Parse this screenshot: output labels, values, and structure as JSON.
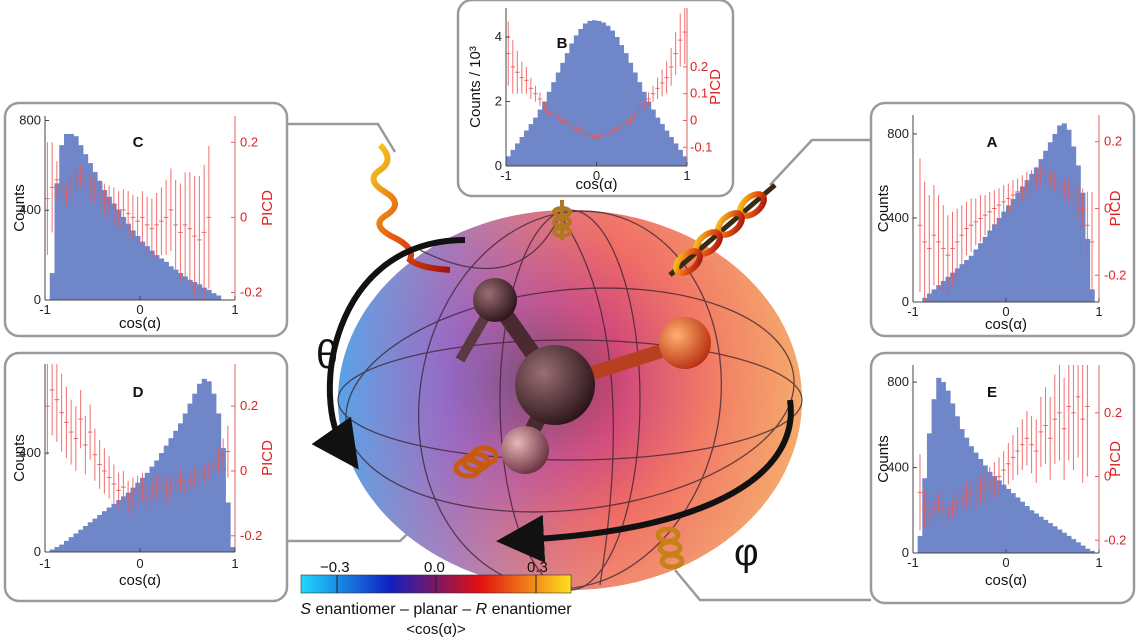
{
  "figure": {
    "theta_symbol": "θ",
    "phi_symbol": "φ",
    "colorbar": {
      "ticks": [
        "−0.3",
        "0.0",
        "0.3"
      ],
      "caption_parts": [
        "S",
        " enantiomer – planar – ",
        "R",
        " enantiomer"
      ],
      "quantity": "<cos(α)>",
      "colors": [
        "#20d8ff",
        "#1020c0",
        "#e01010",
        "#ffe020"
      ]
    }
  },
  "chart_data": [
    {
      "id": "B",
      "type": "bar",
      "label": "B",
      "xlabel": "cos(α)",
      "ylabel": "Counts / 10³",
      "ylabel_right": "PICD",
      "xlim": [
        -1,
        1
      ],
      "ylim": [
        0,
        4.9
      ],
      "y2lim": [
        -0.17,
        0.42
      ],
      "xticks": [
        "-1",
        "0",
        "1"
      ],
      "yticks": [
        "0",
        "2",
        "4"
      ],
      "y2ticks": [
        "0.2",
        "0.1",
        "0",
        "-0.1"
      ],
      "ytick_values": [
        0,
        2,
        4
      ],
      "y2tick_values": [
        0.2,
        0.1,
        0,
        -0.1
      ],
      "hist_color": "#6f86c8",
      "err_color": "#ee5555",
      "bins": 40,
      "values": [
        0.3,
        0.5,
        0.7,
        0.9,
        1.1,
        1.3,
        1.5,
        1.75,
        2.0,
        2.3,
        2.6,
        2.9,
        3.2,
        3.5,
        3.8,
        4.05,
        4.25,
        4.42,
        4.5,
        4.52,
        4.5,
        4.45,
        4.35,
        4.2,
        4.0,
        3.75,
        3.5,
        3.2,
        2.9,
        2.6,
        2.3,
        2.0,
        1.75,
        1.5,
        1.3,
        1.1,
        0.9,
        0.7,
        0.5,
        0.3
      ],
      "picd": [
        0.25,
        0.2,
        0.18,
        0.16,
        0.15,
        0.12,
        0.1,
        0.08,
        0.05,
        0.03,
        0.02,
        0.01,
        0.0,
        -0.01,
        -0.02,
        -0.03,
        -0.04,
        -0.05,
        -0.05,
        -0.06,
        -0.06,
        -0.05,
        -0.05,
        -0.04,
        -0.03,
        -0.02,
        -0.01,
        0.0,
        0.02,
        0.04,
        0.06,
        0.08,
        0.1,
        0.12,
        0.14,
        0.16,
        0.2,
        0.25,
        0.3,
        0.33
      ],
      "picd_err": [
        0.12,
        0.1,
        0.08,
        0.06,
        0.05,
        0.04,
        0.03,
        0.025,
        0.02,
        0.02,
        0.015,
        0.015,
        0.012,
        0.012,
        0.01,
        0.01,
        0.01,
        0.01,
        0.01,
        0.01,
        0.01,
        0.01,
        0.01,
        0.01,
        0.01,
        0.012,
        0.012,
        0.015,
        0.015,
        0.02,
        0.02,
        0.025,
        0.03,
        0.04,
        0.05,
        0.06,
        0.07,
        0.08,
        0.1,
        0.12
      ]
    },
    {
      "id": "C",
      "type": "bar",
      "label": "C",
      "xlabel": "cos(α)",
      "ylabel": "Counts",
      "ylabel_right": "PICD",
      "xlim": [
        -1,
        1
      ],
      "ylim": [
        0,
        820
      ],
      "y2lim": [
        -0.22,
        0.27
      ],
      "xticks": [
        "-1",
        "0",
        "1"
      ],
      "yticks": [
        "0",
        "400",
        "800"
      ],
      "y2ticks": [
        "0.2",
        "0",
        "-0.2"
      ],
      "ytick_values": [
        0,
        400,
        800
      ],
      "y2tick_values": [
        0.2,
        0,
        -0.2
      ],
      "hist_color": "#6f86c8",
      "err_color": "#ee5555",
      "bins": 40,
      "values": [
        0,
        120,
        520,
        690,
        740,
        740,
        730,
        690,
        650,
        610,
        570,
        530,
        490,
        460,
        430,
        400,
        370,
        340,
        310,
        285,
        260,
        240,
        220,
        200,
        185,
        170,
        150,
        135,
        120,
        105,
        90,
        80,
        70,
        55,
        45,
        30,
        20,
        0,
        0,
        0
      ],
      "picd": [
        0.05,
        0.08,
        0.1,
        0.07,
        0.06,
        0.09,
        0.1,
        0.11,
        0.1,
        0.08,
        0.07,
        0.06,
        0.05,
        0.04,
        0.03,
        0.02,
        0.02,
        0.01,
        0.0,
        -0.01,
        0.0,
        -0.02,
        -0.03,
        -0.02,
        -0.01,
        0.0,
        0.02,
        -0.02,
        -0.04,
        -0.02,
        -0.03,
        -0.05,
        -0.06,
        -0.04,
        0.0,
        0.0,
        0.0,
        0.0,
        0.0,
        0.0
      ],
      "picd_err": [
        0.15,
        0.12,
        0.05,
        0.03,
        0.03,
        0.03,
        0.03,
        0.03,
        0.03,
        0.035,
        0.035,
        0.04,
        0.04,
        0.045,
        0.05,
        0.05,
        0.055,
        0.06,
        0.06,
        0.065,
        0.07,
        0.075,
        0.08,
        0.085,
        0.09,
        0.1,
        0.11,
        0.12,
        0.13,
        0.14,
        0.15,
        0.16,
        0.17,
        0.18,
        0.19,
        0.0,
        0.0,
        0.0,
        0.0,
        0.0
      ]
    },
    {
      "id": "A",
      "type": "bar",
      "label": "A",
      "xlabel": "cos(α)",
      "ylabel": "Counts",
      "ylabel_right": "PICD",
      "xlim": [
        -1,
        1
      ],
      "ylim": [
        0,
        890
      ],
      "y2lim": [
        -0.28,
        0.28
      ],
      "xticks": [
        "-1",
        "0",
        "1"
      ],
      "yticks": [
        "0",
        "400",
        "800"
      ],
      "y2ticks": [
        "0.2",
        "0",
        "-0.2"
      ],
      "ytick_values": [
        0,
        400,
        800
      ],
      "y2tick_values": [
        0.2,
        0,
        -0.2
      ],
      "hist_color": "#6f86c8",
      "err_color": "#ee5555",
      "bins": 40,
      "values": [
        0,
        0,
        20,
        40,
        60,
        80,
        100,
        120,
        140,
        160,
        180,
        200,
        220,
        250,
        280,
        310,
        340,
        370,
        400,
        430,
        460,
        490,
        520,
        550,
        580,
        610,
        640,
        680,
        720,
        760,
        800,
        840,
        850,
        820,
        740,
        650,
        520,
        300,
        60,
        0
      ],
      "picd": [
        0.0,
        -0.05,
        -0.1,
        -0.12,
        -0.08,
        -0.1,
        -0.12,
        -0.14,
        -0.12,
        -0.1,
        -0.08,
        -0.06,
        -0.05,
        -0.04,
        -0.03,
        -0.02,
        -0.01,
        0.0,
        0.01,
        0.02,
        0.03,
        0.04,
        0.05,
        0.06,
        0.07,
        0.08,
        0.09,
        0.1,
        0.1,
        0.09,
        0.08,
        0.07,
        0.06,
        0.05,
        0.04,
        0.02,
        0.0,
        -0.05,
        -0.1,
        0.0
      ],
      "picd_err": [
        0.0,
        0.2,
        0.18,
        0.16,
        0.15,
        0.14,
        0.13,
        0.12,
        0.11,
        0.1,
        0.09,
        0.08,
        0.08,
        0.07,
        0.07,
        0.06,
        0.06,
        0.055,
        0.05,
        0.05,
        0.045,
        0.045,
        0.04,
        0.04,
        0.04,
        0.035,
        0.035,
        0.035,
        0.03,
        0.03,
        0.03,
        0.03,
        0.03,
        0.035,
        0.04,
        0.05,
        0.06,
        0.1,
        0.15,
        0.0
      ]
    },
    {
      "id": "D",
      "type": "bar",
      "label": "D",
      "xlabel": "cos(α)",
      "ylabel": "Counts",
      "ylabel_right": "PICD",
      "xlim": [
        -1,
        1
      ],
      "ylim": [
        0,
        760
      ],
      "y2lim": [
        -0.25,
        0.33
      ],
      "xticks": [
        "-1",
        "0",
        "1"
      ],
      "yticks": [
        "0",
        "400"
      ],
      "y2ticks": [
        "0.2",
        "0",
        "-0.2"
      ],
      "ytick_values": [
        0,
        400
      ],
      "y2tick_values": [
        0.2,
        0,
        -0.2
      ],
      "hist_color": "#6f86c8",
      "err_color": "#ee5555",
      "bins": 40,
      "values": [
        0,
        10,
        20,
        30,
        45,
        60,
        75,
        90,
        105,
        120,
        135,
        150,
        165,
        180,
        195,
        210,
        225,
        240,
        260,
        280,
        300,
        320,
        345,
        370,
        400,
        430,
        460,
        490,
        520,
        560,
        600,
        640,
        680,
        700,
        690,
        640,
        560,
        420,
        200,
        20
      ],
      "picd": [
        0.2,
        0.25,
        0.22,
        0.18,
        0.15,
        0.12,
        0.1,
        0.16,
        0.08,
        0.12,
        0.05,
        0.02,
        0.0,
        -0.02,
        -0.04,
        -0.06,
        -0.05,
        -0.08,
        -0.07,
        -0.06,
        -0.05,
        -0.08,
        -0.06,
        -0.05,
        -0.04,
        -0.06,
        -0.05,
        -0.04,
        -0.03,
        -0.05,
        -0.03,
        -0.02,
        -0.02,
        -0.01,
        0.0,
        0.02,
        0.03,
        0.05,
        0.06,
        0.0
      ],
      "picd_err": [
        0.15,
        0.14,
        0.13,
        0.12,
        0.11,
        0.1,
        0.1,
        0.09,
        0.09,
        0.085,
        0.08,
        0.075,
        0.07,
        0.065,
        0.06,
        0.055,
        0.05,
        0.05,
        0.05,
        0.045,
        0.045,
        0.04,
        0.04,
        0.04,
        0.04,
        0.04,
        0.035,
        0.035,
        0.035,
        0.03,
        0.03,
        0.03,
        0.03,
        0.03,
        0.03,
        0.035,
        0.04,
        0.05,
        0.08,
        0.0
      ]
    },
    {
      "id": "E",
      "type": "bar",
      "label": "E",
      "xlabel": "cos(α)",
      "ylabel": "Counts",
      "ylabel_right": "PICD",
      "xlim": [
        -1,
        1
      ],
      "ylim": [
        0,
        880
      ],
      "y2lim": [
        -0.24,
        0.35
      ],
      "xticks": [
        "-1",
        "0",
        "1"
      ],
      "yticks": [
        "0",
        "400",
        "800"
      ],
      "y2ticks": [
        "0.2",
        "0",
        "-0.2"
      ],
      "ytick_values": [
        0,
        400,
        800
      ],
      "y2tick_values": [
        0.2,
        0,
        -0.2
      ],
      "hist_color": "#6f86c8",
      "err_color": "#ee5555",
      "bins": 40,
      "values": [
        0,
        80,
        350,
        560,
        720,
        820,
        800,
        760,
        700,
        640,
        580,
        540,
        500,
        470,
        440,
        410,
        380,
        360,
        340,
        320,
        300,
        280,
        260,
        240,
        220,
        200,
        185,
        170,
        155,
        140,
        125,
        110,
        95,
        80,
        65,
        50,
        35,
        20,
        10,
        0
      ],
      "picd": [
        0.0,
        -0.05,
        -0.1,
        -0.12,
        -0.1,
        -0.08,
        -0.1,
        -0.12,
        -0.1,
        -0.08,
        -0.07,
        -0.06,
        -0.05,
        -0.06,
        -0.04,
        -0.03,
        -0.02,
        -0.01,
        0.0,
        0.02,
        0.04,
        0.06,
        0.08,
        0.1,
        0.12,
        0.1,
        0.08,
        0.14,
        0.16,
        0.12,
        0.18,
        0.2,
        0.15,
        0.22,
        0.2,
        0.25,
        0.18,
        0.22,
        0.0,
        0.0
      ],
      "picd_err": [
        0.0,
        0.12,
        0.06,
        0.04,
        0.03,
        0.03,
        0.03,
        0.03,
        0.03,
        0.035,
        0.035,
        0.04,
        0.04,
        0.045,
        0.045,
        0.05,
        0.05,
        0.055,
        0.06,
        0.06,
        0.065,
        0.07,
        0.075,
        0.08,
        0.085,
        0.09,
        0.1,
        0.11,
        0.12,
        0.13,
        0.14,
        0.15,
        0.16,
        0.17,
        0.18,
        0.19,
        0.2,
        0.22,
        0.0,
        0.0
      ]
    }
  ]
}
